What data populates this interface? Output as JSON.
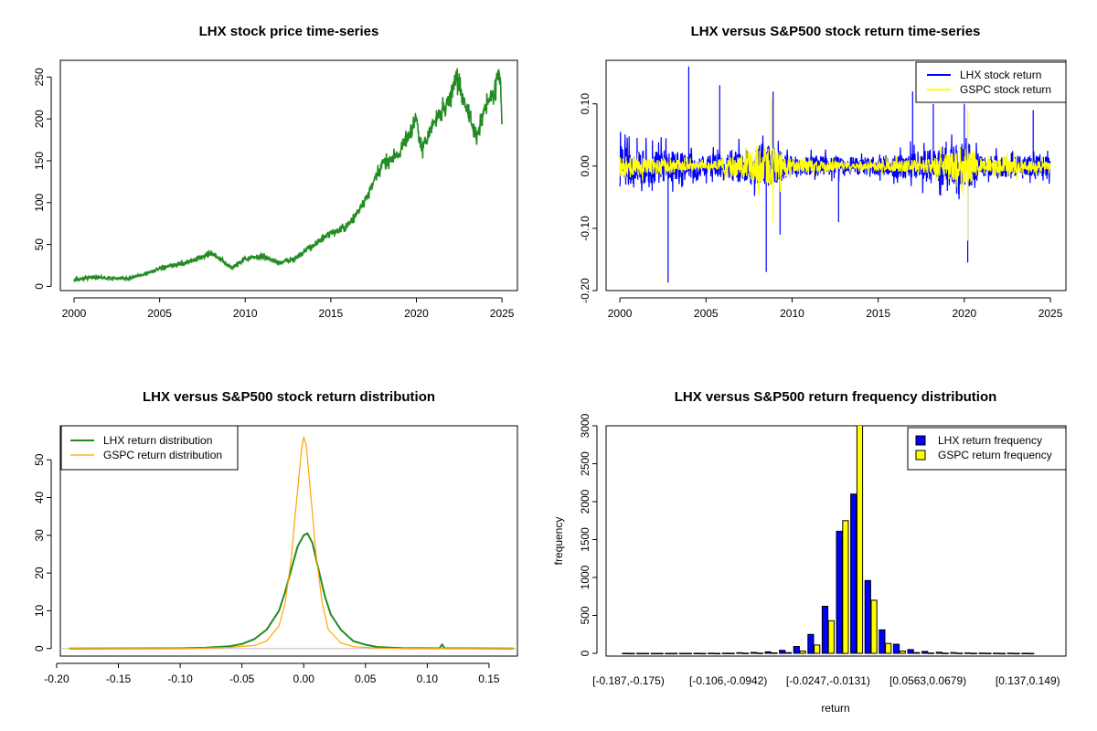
{
  "chart_data": [
    {
      "type": "line",
      "title": "LHX stock price time-series",
      "xlabel": "",
      "ylabel": "",
      "xlim": [
        1999.2,
        2025.9
      ],
      "ylim": [
        -5,
        270
      ],
      "xticks": [
        2000,
        2005,
        2010,
        2015,
        2020,
        2025
      ],
      "yticks": [
        0,
        50,
        100,
        150,
        200,
        250
      ],
      "grid": false,
      "series": [
        {
          "color": "#228b22",
          "x": [
            2000.0,
            2001.0,
            2002.0,
            2003.0,
            2004.0,
            2005.0,
            2006.0,
            2007.0,
            2008.0,
            2008.5,
            2009.2,
            2010.0,
            2011.0,
            2012.0,
            2013.0,
            2014.0,
            2015.0,
            2016.0,
            2017.0,
            2018.0,
            2019.0,
            2020.0,
            2020.3,
            2021.0,
            2022.0,
            2022.3,
            2023.0,
            2023.5,
            2024.0,
            2024.5,
            2024.85,
            2025.0
          ],
          "y": [
            8,
            11,
            10,
            9,
            14,
            21,
            26,
            31,
            40,
            33,
            22,
            33,
            36,
            28,
            34,
            50,
            63,
            72,
            102,
            145,
            160,
            200,
            162,
            195,
            225,
            250,
            210,
            175,
            215,
            230,
            260,
            200
          ]
        }
      ]
    },
    {
      "type": "line",
      "title": "LHX versus S&P500 stock return time-series",
      "xlabel": "",
      "ylabel": "",
      "xlim": [
        1999.2,
        2025.9
      ],
      "ylim": [
        -0.2,
        0.17
      ],
      "xticks": [
        2000,
        2005,
        2010,
        2015,
        2020,
        2025
      ],
      "yticks": [
        -0.2,
        -0.1,
        0.0,
        0.1
      ],
      "ytick_labels": [
        "-0.20",
        "-0.10",
        "0.00",
        "0.10"
      ],
      "legend": "top-right",
      "series": [
        {
          "name": "LHX stock return",
          "color": "#0000ff",
          "spikes": [
            [
              2002.8,
              -0.187
            ],
            [
              2004.0,
              0.16
            ],
            [
              2005.8,
              0.13
            ],
            [
              2008.5,
              -0.17
            ],
            [
              2008.9,
              0.12
            ],
            [
              2009.3,
              -0.11
            ],
            [
              2012.7,
              -0.09
            ],
            [
              2017.0,
              0.12
            ],
            [
              2018.2,
              0.1
            ],
            [
              2020.2,
              -0.155
            ],
            [
              2020.0,
              0.1
            ],
            [
              2024.0,
              0.09
            ]
          ],
          "amplitude": [
            [
              2000,
              0.06
            ],
            [
              2003,
              0.045
            ],
            [
              2005,
              0.03
            ],
            [
              2008.5,
              0.065
            ],
            [
              2010,
              0.03
            ],
            [
              2015,
              0.025
            ],
            [
              2020.2,
              0.07
            ],
            [
              2021,
              0.03
            ],
            [
              2025,
              0.03
            ]
          ]
        },
        {
          "name": "GSPC stock return",
          "color": "#ffff00",
          "spikes": [
            [
              2008.8,
              0.11
            ],
            [
              2008.9,
              -0.09
            ],
            [
              2020.2,
              0.09
            ],
            [
              2020.2,
              -0.12
            ]
          ],
          "amplitude": [
            [
              2000,
              0.03
            ],
            [
              2003,
              0.02
            ],
            [
              2005,
              0.01
            ],
            [
              2008.8,
              0.06
            ],
            [
              2010,
              0.02
            ],
            [
              2013,
              0.012
            ],
            [
              2018,
              0.02
            ],
            [
              2020.2,
              0.06
            ],
            [
              2021,
              0.015
            ],
            [
              2022.5,
              0.025
            ],
            [
              2025,
              0.012
            ]
          ]
        }
      ]
    },
    {
      "type": "line",
      "title": "LHX versus S&P500 stock return distribution",
      "xlabel": "",
      "ylabel": "",
      "xlim": [
        -0.197,
        0.173
      ],
      "ylim": [
        -2,
        59
      ],
      "xticks": [
        -0.2,
        -0.15,
        -0.1,
        -0.05,
        0.0,
        0.05,
        0.1,
        0.15
      ],
      "xtick_labels": [
        "-0.20",
        "-0.15",
        "-0.10",
        "-0.05",
        "0.00",
        "0.05",
        "0.10",
        "0.15"
      ],
      "yticks": [
        0,
        10,
        20,
        30,
        40,
        50
      ],
      "legend": "top-left",
      "series": [
        {
          "name": "LHX return distribution",
          "color": "#228b22",
          "x": [
            -0.19,
            -0.1,
            -0.08,
            -0.06,
            -0.05,
            -0.04,
            -0.03,
            -0.02,
            -0.015,
            -0.01,
            -0.005,
            0.0,
            0.003,
            0.007,
            0.012,
            0.017,
            0.022,
            0.03,
            0.04,
            0.05,
            0.06,
            0.08,
            0.11,
            0.112,
            0.114,
            0.17
          ],
          "y": [
            0.0,
            0.05,
            0.2,
            0.6,
            1.2,
            2.5,
            5.0,
            10.0,
            15.0,
            21.0,
            27.0,
            30.0,
            30.5,
            28.0,
            21.0,
            14.0,
            9.0,
            5.0,
            2.0,
            1.0,
            0.4,
            0.1,
            0.05,
            1.1,
            0.05,
            0.0
          ]
        },
        {
          "name": "GSPC return distribution",
          "color": "#ffa500",
          "x": [
            -0.19,
            -0.1,
            -0.08,
            -0.06,
            -0.04,
            -0.03,
            -0.02,
            -0.015,
            -0.01,
            -0.007,
            -0.004,
            -0.002,
            0.0,
            0.002,
            0.004,
            0.007,
            0.01,
            0.015,
            0.02,
            0.03,
            0.04,
            0.06,
            0.1,
            0.17
          ],
          "y": [
            0.0,
            0.02,
            0.1,
            0.3,
            0.8,
            2.0,
            6.0,
            12.0,
            24.0,
            35.0,
            45.0,
            52.0,
            56.0,
            54.0,
            47.0,
            36.0,
            25.0,
            12.0,
            5.0,
            1.5,
            0.5,
            0.1,
            0.02,
            0.0
          ]
        }
      ]
    },
    {
      "type": "bar",
      "title": "LHX versus S&P500 return frequency distribution",
      "xlabel": "return",
      "ylabel": "frequency",
      "ylim": [
        0,
        3000
      ],
      "yticks": [
        0,
        500,
        1000,
        1500,
        2000,
        2500,
        3000
      ],
      "legend": "top-right",
      "categories": [
        "[-0.187,-0.175)",
        "[-0.175,-0.164)",
        "[-0.164,-0.152)",
        "[-0.152,-0.141)",
        "[-0.141,-0.129)",
        "[-0.129,-0.118)",
        "[-0.118,-0.106)",
        "[-0.106,-0.0942)",
        "[-0.0942,-0.0827)",
        "[-0.0827,-0.0712)",
        "[-0.0712,-0.0595)",
        "[-0.0595,-0.0479)",
        "[-0.0479,-0.0363)",
        "[-0.0363,-0.0247)",
        "[-0.0247,-0.0131)",
        "[-0.0131,-0.00154)",
        "[-0.00154,0.01)",
        "[0.01,0.0216)",
        "[0.0216,0.0332)",
        "[0.0332,0.0447)",
        "[0.0447,0.0563)",
        "[0.0563,0.0679)",
        "[0.0679,0.0795)",
        "[0.0795,0.091)",
        "[0.091,0.103)",
        "[0.103,0.114)",
        "[0.114,0.126)",
        "[0.126,0.137)",
        "[0.137,0.149)"
      ],
      "xtick_labels": [
        "[-0.187,-0.175)",
        "[-0.106,-0.0942)",
        "[-0.0247,-0.0131)",
        "[0.0563,0.0679)",
        "[0.137,0.149)"
      ],
      "xtick_index": [
        0,
        7,
        14,
        21,
        28
      ],
      "series": [
        {
          "name": "LHX return frequency",
          "color": "#0000ff",
          "values": [
            1,
            0,
            0,
            0,
            0,
            1,
            2,
            3,
            8,
            12,
            20,
            40,
            90,
            250,
            620,
            1610,
            2100,
            960,
            310,
            120,
            50,
            25,
            15,
            10,
            6,
            4,
            3,
            2,
            1
          ]
        },
        {
          "name": "GSPC return frequency",
          "color": "#ffff00",
          "values": [
            0,
            0,
            0,
            0,
            0,
            0,
            0,
            1,
            2,
            4,
            6,
            10,
            30,
            110,
            430,
            1750,
            3050,
            700,
            130,
            30,
            10,
            5,
            3,
            2,
            1,
            1,
            0,
            0,
            0
          ]
        }
      ]
    }
  ]
}
